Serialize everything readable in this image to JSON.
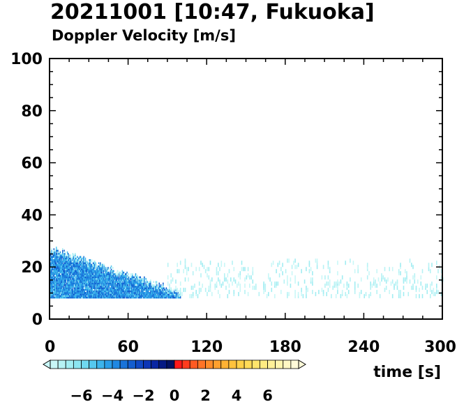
{
  "chart_data": {
    "type": "heatmap",
    "title": "20211001 [10:47, Fukuoka]",
    "subtitle": "Doppler Velocity [m/s]",
    "xlabel": "time [s]",
    "ylabel": "",
    "xlim": [
      0,
      300
    ],
    "ylim": [
      0,
      100
    ],
    "x_ticks": [
      0,
      60,
      120,
      180,
      240,
      300
    ],
    "y_ticks": [
      0,
      20,
      40,
      60,
      80,
      100
    ],
    "colorbar": {
      "range": [
        -8,
        8
      ],
      "step": 0.5,
      "tick_values": [
        -6,
        -4,
        -2,
        0,
        2,
        4,
        6
      ],
      "tick_labels": [
        "−6",
        "−4",
        "−2",
        "0",
        "2",
        "4",
        "6"
      ],
      "colors": [
        "#c9f7f7",
        "#b6f2f4",
        "#a2edf2",
        "#8ce5f0",
        "#70d8ef",
        "#55c8ee",
        "#3cb4ec",
        "#2a9ee8",
        "#1f88e2",
        "#1973d9",
        "#145ecf",
        "#1049c4",
        "#0c36b6",
        "#0926a2",
        "#061a84",
        "#041262",
        "#ff1a1a",
        "#ff3c1e",
        "#ff5a22",
        "#ff7426",
        "#ff8c2a",
        "#ffa02e",
        "#ffb234",
        "#ffc23c",
        "#ffd048",
        "#ffdb58",
        "#ffe46c",
        "#ffeb82",
        "#fff098",
        "#fff4ae",
        "#fff7c4",
        "#fffad8"
      ]
    },
    "regions": [
      {
        "name": "strong-downward-layer",
        "x_range": [
          0,
          100
        ],
        "height_top_start": 27,
        "height_top_end": 10,
        "height_bottom": 8,
        "velocity_range": [
          -5.5,
          -2.5
        ]
      },
      {
        "name": "weak-downward-layer",
        "x_range": [
          90,
          300
        ],
        "height_range": [
          8,
          22
        ],
        "velocity_range": [
          -8,
          -6.5
        ]
      }
    ]
  }
}
